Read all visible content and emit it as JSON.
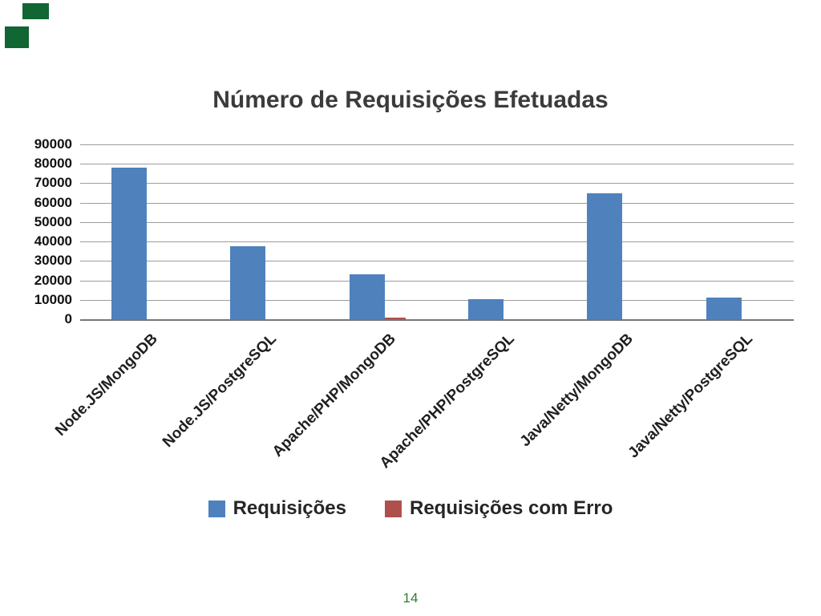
{
  "slide": {
    "page_number": "14",
    "page_number_color": "#2e7d32",
    "accent_green": "#116633"
  },
  "chart_data": {
    "type": "bar",
    "title": "Número de Requisições Efetuadas",
    "categories": [
      "Node.JS/MongoDB",
      "Node.JS/PostgreSQL",
      "Apache/PHP/MongoDB",
      "Apache/PHP/PostgreSQL",
      "Java/Netty/MongoDB",
      "Java/Netty/PostgreSQL"
    ],
    "series": [
      {
        "name": "Requisições",
        "color": "#4F81BD",
        "values": [
          78000,
          37500,
          23000,
          10500,
          65000,
          11000
        ]
      },
      {
        "name": "Requisições com Erro",
        "color": "#B0504D",
        "values": [
          0,
          0,
          1000,
          0,
          0,
          0
        ]
      }
    ],
    "xlabel": "",
    "ylabel": "",
    "ylim": [
      0,
      90000
    ],
    "ytick_step": 10000,
    "grid": true,
    "legend_position": "bottom"
  }
}
